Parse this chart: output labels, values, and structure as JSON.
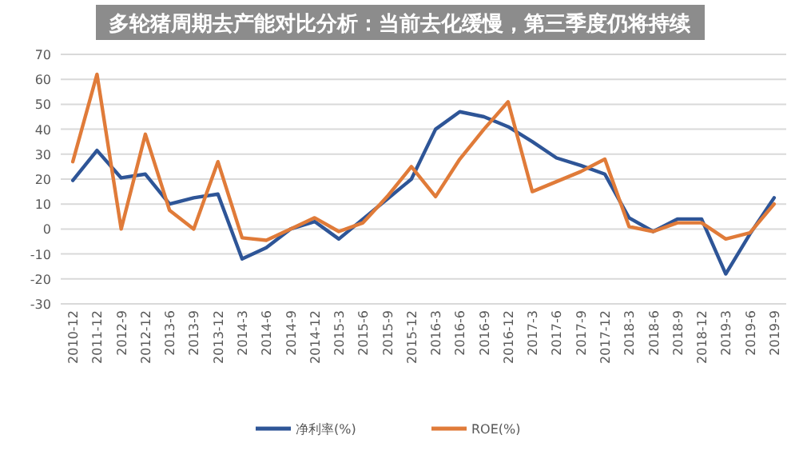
{
  "chart_data": {
    "type": "line",
    "title": "多轮猪周期去产能对比分析：当前去化缓慢，第三季度仍将持续",
    "categories": [
      "2010-12",
      "2011-12",
      "2012-9",
      "2012-12",
      "2013-6",
      "2013-9",
      "2013-12",
      "2014-3",
      "2014-6",
      "2014-9",
      "2014-12",
      "2015-3",
      "2015-6",
      "2015-9",
      "2015-12",
      "2016-3",
      "2016-6",
      "2016-9",
      "2016-12",
      "2017-3",
      "2017-6",
      "2017-9",
      "2017-12",
      "2018-3",
      "2018-6",
      "2018-9",
      "2018-12",
      "2019-3",
      "2019-6",
      "2019-9"
    ],
    "series": [
      {
        "name": "净利率(%)",
        "color": "#2e5597",
        "values": [
          19.5,
          31.5,
          20.5,
          22,
          10,
          12.5,
          14,
          -12,
          -7.5,
          0,
          3,
          -4,
          4,
          12,
          20,
          40,
          47,
          45,
          41,
          35,
          28.5,
          25.5,
          22,
          4.5,
          -1,
          4,
          4,
          -18,
          -2,
          12.5
        ]
      },
      {
        "name": "ROE(%)",
        "color": "#e07b39",
        "values": [
          27,
          62,
          0,
          38,
          7.5,
          0,
          27,
          -3.5,
          -4.5,
          0,
          4.5,
          -1,
          2.5,
          13,
          25,
          13,
          28,
          40,
          51,
          15,
          19,
          23,
          28,
          1,
          -1,
          2.5,
          2.5,
          -4,
          -1.5,
          10
        ]
      }
    ],
    "ylim": [
      -30,
      70
    ],
    "yticks": [
      -30,
      -20,
      -10,
      0,
      10,
      20,
      30,
      40,
      50,
      60,
      70
    ],
    "grid": "y",
    "legend": "bottom",
    "line_style": "solid",
    "marker": "none"
  }
}
